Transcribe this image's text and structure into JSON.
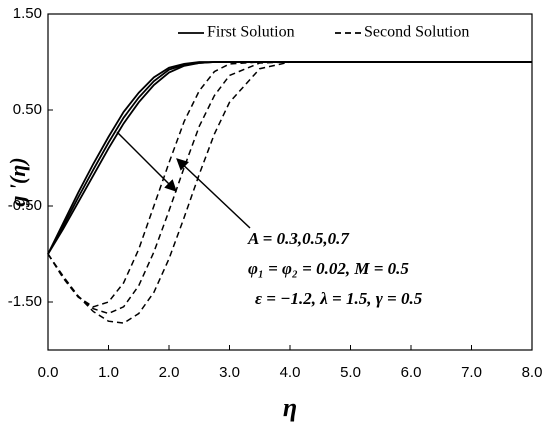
{
  "chart_data": {
    "type": "line",
    "x_label": "η",
    "y_label": "g '(η)",
    "x": [
      0,
      0.25,
      0.5,
      0.75,
      1,
      1.25,
      1.5,
      1.75,
      2,
      2.25,
      2.5,
      2.75,
      3,
      3.5,
      4,
      5,
      6,
      7,
      8
    ],
    "series": [
      {
        "name": "First Solution",
        "color": "#000000",
        "dashed": false,
        "values": [
          [
            -1,
            -0.68,
            -0.36,
            -0.06,
            0.22,
            0.48,
            0.68,
            0.84,
            0.94,
            0.98,
            1.0,
            1.0,
            1.0,
            1.0,
            1.0,
            1.0,
            1.0,
            1.0,
            1.0
          ],
          [
            -1,
            -0.71,
            -0.41,
            -0.12,
            0.16,
            0.42,
            0.63,
            0.8,
            0.92,
            0.97,
            0.99,
            1.0,
            1.0,
            1.0,
            1.0,
            1.0,
            1.0,
            1.0,
            1.0
          ],
          [
            -1,
            -0.74,
            -0.46,
            -0.18,
            0.1,
            0.36,
            0.58,
            0.76,
            0.89,
            0.96,
            0.99,
            1.0,
            1.0,
            1.0,
            1.0,
            1.0,
            1.0,
            1.0,
            1.0
          ]
        ]
      },
      {
        "name": "Second Solution",
        "color": "#000000",
        "dashed": true,
        "values": [
          [
            -1,
            -1.25,
            -1.45,
            -1.55,
            -1.5,
            -1.3,
            -0.95,
            -0.5,
            -0.05,
            0.38,
            0.7,
            0.9,
            0.98,
            1.0,
            1.0,
            1.0,
            1.0,
            1.0,
            1.0
          ],
          [
            -1,
            -1.24,
            -1.44,
            -1.57,
            -1.62,
            -1.55,
            -1.33,
            -0.98,
            -0.55,
            -0.1,
            0.33,
            0.65,
            0.86,
            0.99,
            1.0,
            1.0,
            1.0,
            1.0,
            1.0
          ],
          [
            -1,
            -1.23,
            -1.44,
            -1.6,
            -1.7,
            -1.72,
            -1.62,
            -1.4,
            -1.05,
            -0.62,
            -0.17,
            0.25,
            0.58,
            0.93,
            1.0,
            1.0,
            1.0,
            1.0,
            1.0
          ]
        ]
      }
    ],
    "xlim": [
      0,
      8
    ],
    "xticks": [
      {
        "value": 0,
        "label": "0.0"
      },
      {
        "value": 1,
        "label": "1.0"
      },
      {
        "value": 2,
        "label": "2.0"
      },
      {
        "value": 3,
        "label": "3.0"
      },
      {
        "value": 4,
        "label": "4.0"
      },
      {
        "value": 5,
        "label": "5.0"
      },
      {
        "value": 6,
        "label": "6.0"
      },
      {
        "value": 7,
        "label": "7.0"
      },
      {
        "value": 8,
        "label": "8.0"
      }
    ],
    "ylim": [
      -2,
      1.5
    ],
    "yticks": [
      {
        "value": 1.5,
        "label": "1.50"
      },
      {
        "value": 0.5,
        "label": "0.50"
      },
      {
        "value": -0.5,
        "label": "-0.50"
      },
      {
        "value": -1.5,
        "label": "-1.50"
      }
    ],
    "annotations": [
      "A = 0.3,0.5,0.7",
      "φ₁ = φ₂ = 0.02, M = 0.5",
      "ε = −1.2, λ = 1.5, γ = 0.5"
    ]
  }
}
